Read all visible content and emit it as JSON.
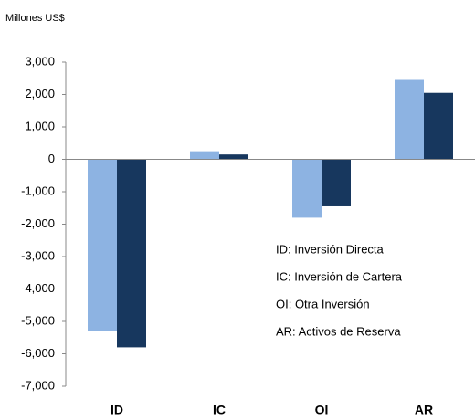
{
  "chart_data": {
    "type": "bar",
    "title": "Millones US$",
    "categories": [
      "ID",
      "IC",
      "OI",
      "AR"
    ],
    "series": [
      {
        "color": "#8db3e2",
        "values": [
          -5300,
          250,
          -1800,
          2450
        ]
      },
      {
        "color": "#17375e",
        "values": [
          -5800,
          150,
          -1450,
          2050
        ]
      }
    ],
    "ylim": [
      -7000,
      3000
    ],
    "yticks": [
      {
        "value": 3000,
        "label": "3,000"
      },
      {
        "value": 2000,
        "label": "2,000"
      },
      {
        "value": 1000,
        "label": "1,000"
      },
      0,
      {
        "value": -1000,
        "label": "-1,000"
      },
      {
        "value": -2000,
        "label": "-2,000"
      },
      {
        "value": -3000,
        "label": "-3,000"
      },
      {
        "value": -4000,
        "label": "-4,000"
      },
      {
        "value": -5000,
        "label": "-5,000"
      },
      {
        "value": -6000,
        "label": "-6,000"
      },
      {
        "value": -7000,
        "label": "-7,000"
      }
    ],
    "annotations": [
      "ID: Inversión Directa",
      "IC: Inversión de Cartera",
      "OI: Otra Inversión",
      "AR: Activos de Reserva"
    ],
    "grid": false
  }
}
